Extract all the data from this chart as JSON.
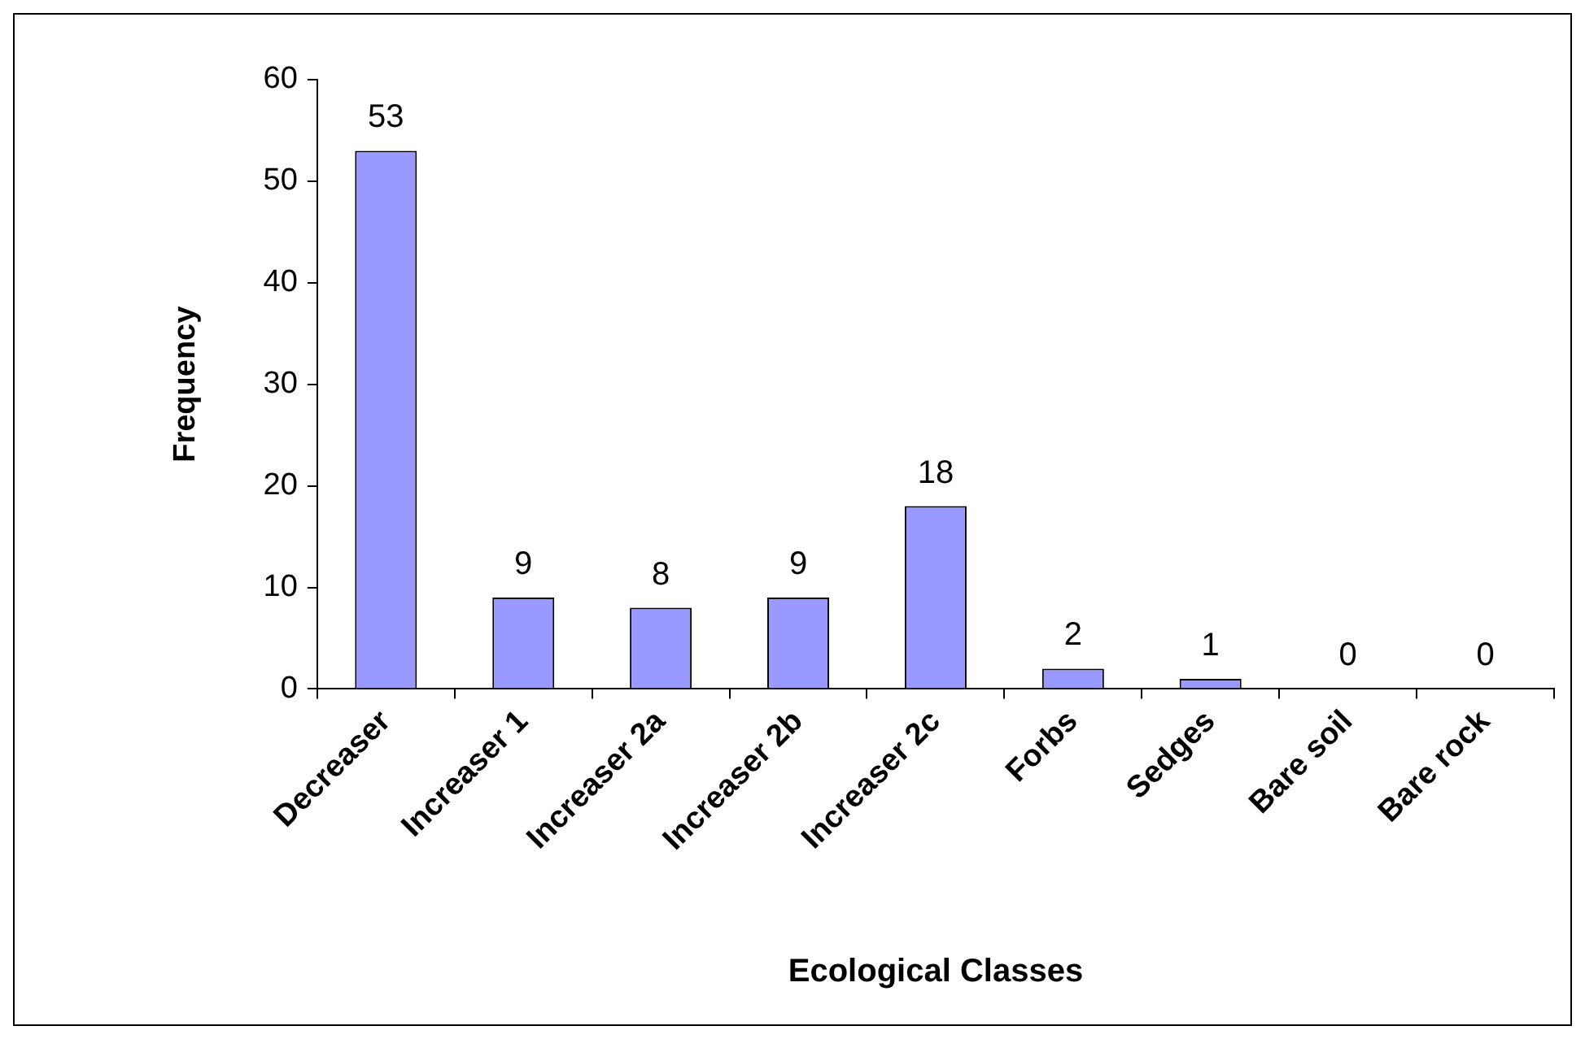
{
  "chart_data": {
    "type": "bar",
    "xlabel": "Ecological Classes",
    "ylabel": "Frequency",
    "categories": [
      "Decreaser",
      "Increaser 1",
      "Increaser 2a",
      "Increaser 2b",
      "Increaser 2c",
      "Forbs",
      "Sedges",
      "Bare soil",
      "Bare rock"
    ],
    "values": [
      53,
      9,
      8,
      9,
      18,
      2,
      1,
      0,
      0
    ],
    "color": "#9999ff",
    "ylim": [
      0,
      60
    ],
    "yticks": [
      0,
      10,
      20,
      30,
      40,
      50,
      60
    ],
    "grid": false,
    "legend": false,
    "data_labels": true
  }
}
